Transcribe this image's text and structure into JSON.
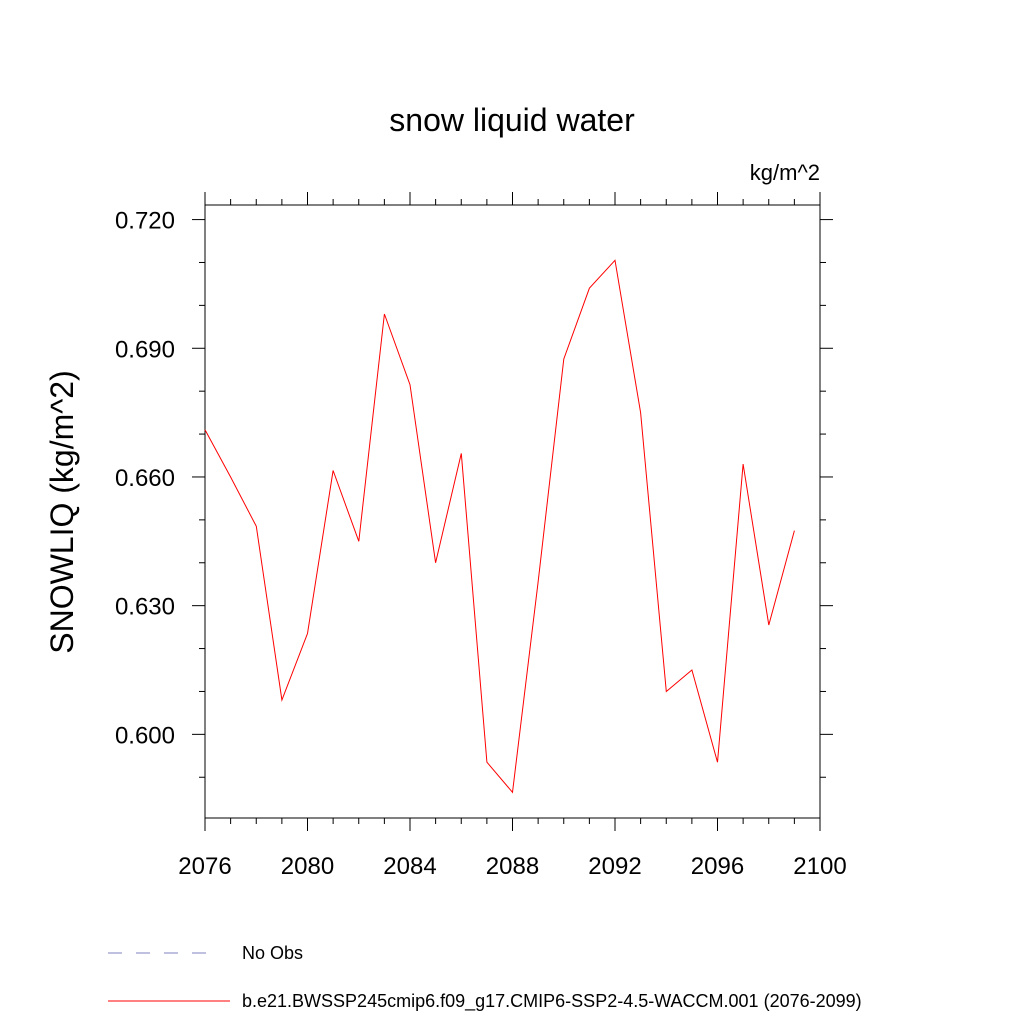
{
  "chart_data": {
    "type": "line",
    "title": "snow liquid water",
    "units_label": "kg/m^2",
    "xlabel": "",
    "ylabel": "SNOWLIQ  (kg/m^2)",
    "xlim": [
      2076,
      2100
    ],
    "ylim": [
      0.5805,
      0.7234
    ],
    "x_ticks": [
      "2076",
      "2080",
      "2084",
      "2088",
      "2092",
      "2096",
      "2100"
    ],
    "x_tick_values": [
      2076,
      2080,
      2084,
      2088,
      2092,
      2096,
      2100
    ],
    "y_ticks": [
      "0.600",
      "0.630",
      "0.660",
      "0.690",
      "0.720"
    ],
    "y_tick_values": [
      0.6,
      0.63,
      0.66,
      0.69,
      0.72
    ],
    "grid": false,
    "legend_position": "bottom",
    "series": [
      {
        "name": "b.e21.BWSSP245cmip6.f09_g17.CMIP6-SSP2-4.5-WACCM.001 (2076-2099)",
        "color": "#ff0000",
        "style": "solid",
        "x": [
          2076,
          2077,
          2078,
          2079,
          2080,
          2081,
          2082,
          2083,
          2084,
          2085,
          2086,
          2087,
          2088,
          2089,
          2090,
          2091,
          2092,
          2093,
          2094,
          2095,
          2096,
          2097,
          2098,
          2099
        ],
        "values": [
          0.671,
          0.66,
          0.6485,
          0.608,
          0.6235,
          0.6615,
          0.645,
          0.698,
          0.6815,
          0.64,
          0.6655,
          0.5935,
          0.5865,
          0.6355,
          0.6875,
          0.704,
          0.7105,
          0.675,
          0.61,
          0.615,
          0.5935,
          0.663,
          0.6255,
          0.6475
        ]
      }
    ],
    "legend": [
      {
        "label": "No Obs",
        "color": "#8080c0",
        "style": "dashed"
      },
      {
        "label": "b.e21.BWSSP245cmip6.f09_g17.CMIP6-SSP2-4.5-WACCM.001 (2076-2099)",
        "color": "#ff0000",
        "style": "solid"
      }
    ]
  }
}
